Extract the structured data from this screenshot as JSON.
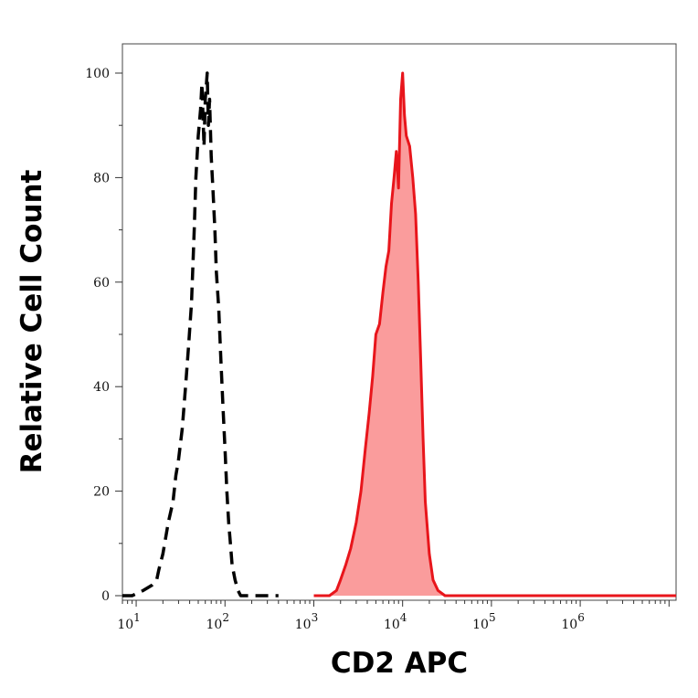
{
  "chart_data": {
    "type": "area",
    "xlabel": "CD2 APC",
    "ylabel": "Relative Cell Count",
    "x_scale": "log",
    "xlim": [
      7,
      12000000
    ],
    "ylim": [
      0,
      100
    ],
    "x_ticks": [
      {
        "value": 10,
        "base": "10",
        "exp": "1"
      },
      {
        "value": 100,
        "base": "10",
        "exp": "2"
      },
      {
        "value": 1000,
        "base": "10",
        "exp": "3"
      },
      {
        "value": 10000,
        "base": "10",
        "exp": "4"
      },
      {
        "value": 100000,
        "base": "10",
        "exp": "5"
      },
      {
        "value": 1000000,
        "base": "10",
        "exp": "6"
      }
    ],
    "y_ticks": [
      0,
      20,
      40,
      60,
      80,
      100
    ],
    "y_tick_labels": [
      "0",
      "20",
      "40",
      "60",
      "80",
      "100"
    ],
    "grid": false,
    "series": [
      {
        "style": "dashed",
        "color": "#000000",
        "fill": "none",
        "x": [
          7,
          9,
          12,
          15,
          17,
          18,
          20,
          23,
          26,
          28,
          30,
          33,
          36,
          39,
          42,
          45,
          47,
          50,
          53,
          55,
          58,
          60,
          63,
          65,
          67,
          70,
          73,
          77,
          80,
          85,
          90,
          95,
          100,
          105,
          110,
          115,
          120,
          130,
          140,
          150,
          160,
          170,
          200,
          300,
          400
        ],
        "y": [
          0,
          0,
          1,
          2,
          3,
          5,
          8,
          14,
          18,
          23,
          26,
          32,
          40,
          48,
          56,
          70,
          80,
          88,
          93,
          98,
          86,
          95,
          100,
          90,
          95,
          84,
          78,
          70,
          62,
          55,
          45,
          36,
          28,
          20,
          14,
          10,
          6,
          3,
          1,
          0,
          0,
          0,
          0,
          0,
          0
        ]
      },
      {
        "style": "solid",
        "color": "#e8151b",
        "fill": "#fa9c9c",
        "x": [
          1000,
          1500,
          1800,
          2000,
          2300,
          2600,
          3000,
          3400,
          3800,
          4200,
          4600,
          5000,
          5500,
          6000,
          6500,
          7000,
          7500,
          8000,
          8500,
          9000,
          9500,
          10000,
          10500,
          11000,
          12000,
          13000,
          14000,
          15000,
          16000,
          17000,
          18000,
          20000,
          22000,
          25000,
          30000,
          50000,
          100000,
          1000000,
          12000000
        ],
        "y": [
          0,
          0,
          1,
          3,
          6,
          9,
          14,
          20,
          28,
          35,
          42,
          50,
          52,
          58,
          63,
          66,
          75,
          80,
          85,
          78,
          95,
          100,
          92,
          88,
          86,
          80,
          73,
          60,
          45,
          30,
          18,
          8,
          3,
          1,
          0,
          0,
          0,
          0,
          0
        ]
      }
    ]
  }
}
